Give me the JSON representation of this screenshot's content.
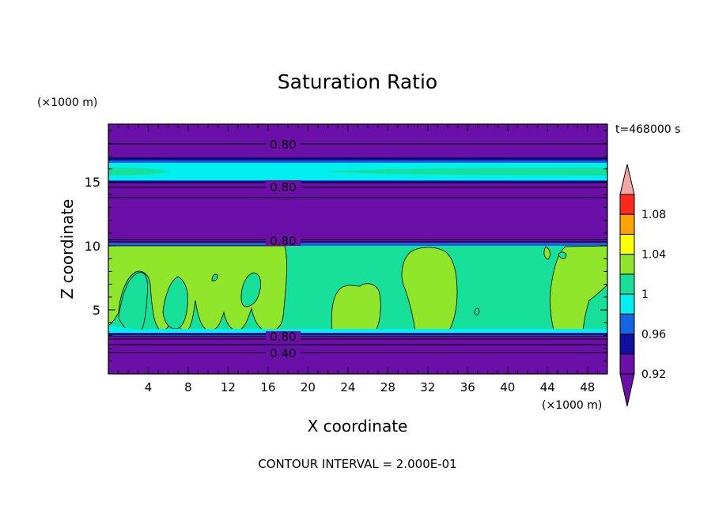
{
  "chart_data": {
    "type": "heatmap",
    "title": "Saturation Ratio",
    "xlabel": "X coordinate",
    "ylabel": "Z coordinate",
    "x_unit": "(×1000 m)",
    "y_unit": "(×1000 m)",
    "time_label": "t=468000 s",
    "footer": "CONTOUR INTERVAL = 2.000E-01",
    "xlim": [
      0,
      50
    ],
    "ylim": [
      0,
      19.5
    ],
    "x_ticks": [
      "4",
      "8",
      "12",
      "16",
      "20",
      "24",
      "28",
      "32",
      "36",
      "40",
      "44",
      "48"
    ],
    "y_ticks": [
      "5",
      "10",
      "15"
    ],
    "colorbar": {
      "levels": [
        0.92,
        0.94,
        0.96,
        0.98,
        1.0,
        1.02,
        1.04,
        1.06,
        1.08,
        1.1
      ],
      "colors": [
        "#6a0fa8",
        "#1010a0",
        "#1464e6",
        "#00f0f0",
        "#16e09a",
        "#8fe62a",
        "#ffff00",
        "#ffa200",
        "#ff2a1a",
        "#f4a6a6"
      ],
      "labels": [
        "0.92",
        "0.96",
        "1",
        "1.04",
        "1.08"
      ],
      "extend": "both"
    },
    "contour_labels": [
      "0.80",
      "0.80",
      "0.80",
      "0.80",
      "0.40"
    ],
    "field_description": [
      {
        "z_range": [
          0,
          3.5
        ],
        "level": "<0.92"
      },
      {
        "z_range": [
          3.5,
          10.2
        ],
        "level": "0.98-1.02 with patches 1.00-1.02"
      },
      {
        "z_range": [
          10.2,
          15.3
        ],
        "level": "<0.92"
      },
      {
        "z_range": [
          15.3,
          17.0
        ],
        "level": "0.92-1.00 thin moist band"
      },
      {
        "z_range": [
          17.0,
          19.5
        ],
        "level": "<0.92"
      }
    ]
  }
}
